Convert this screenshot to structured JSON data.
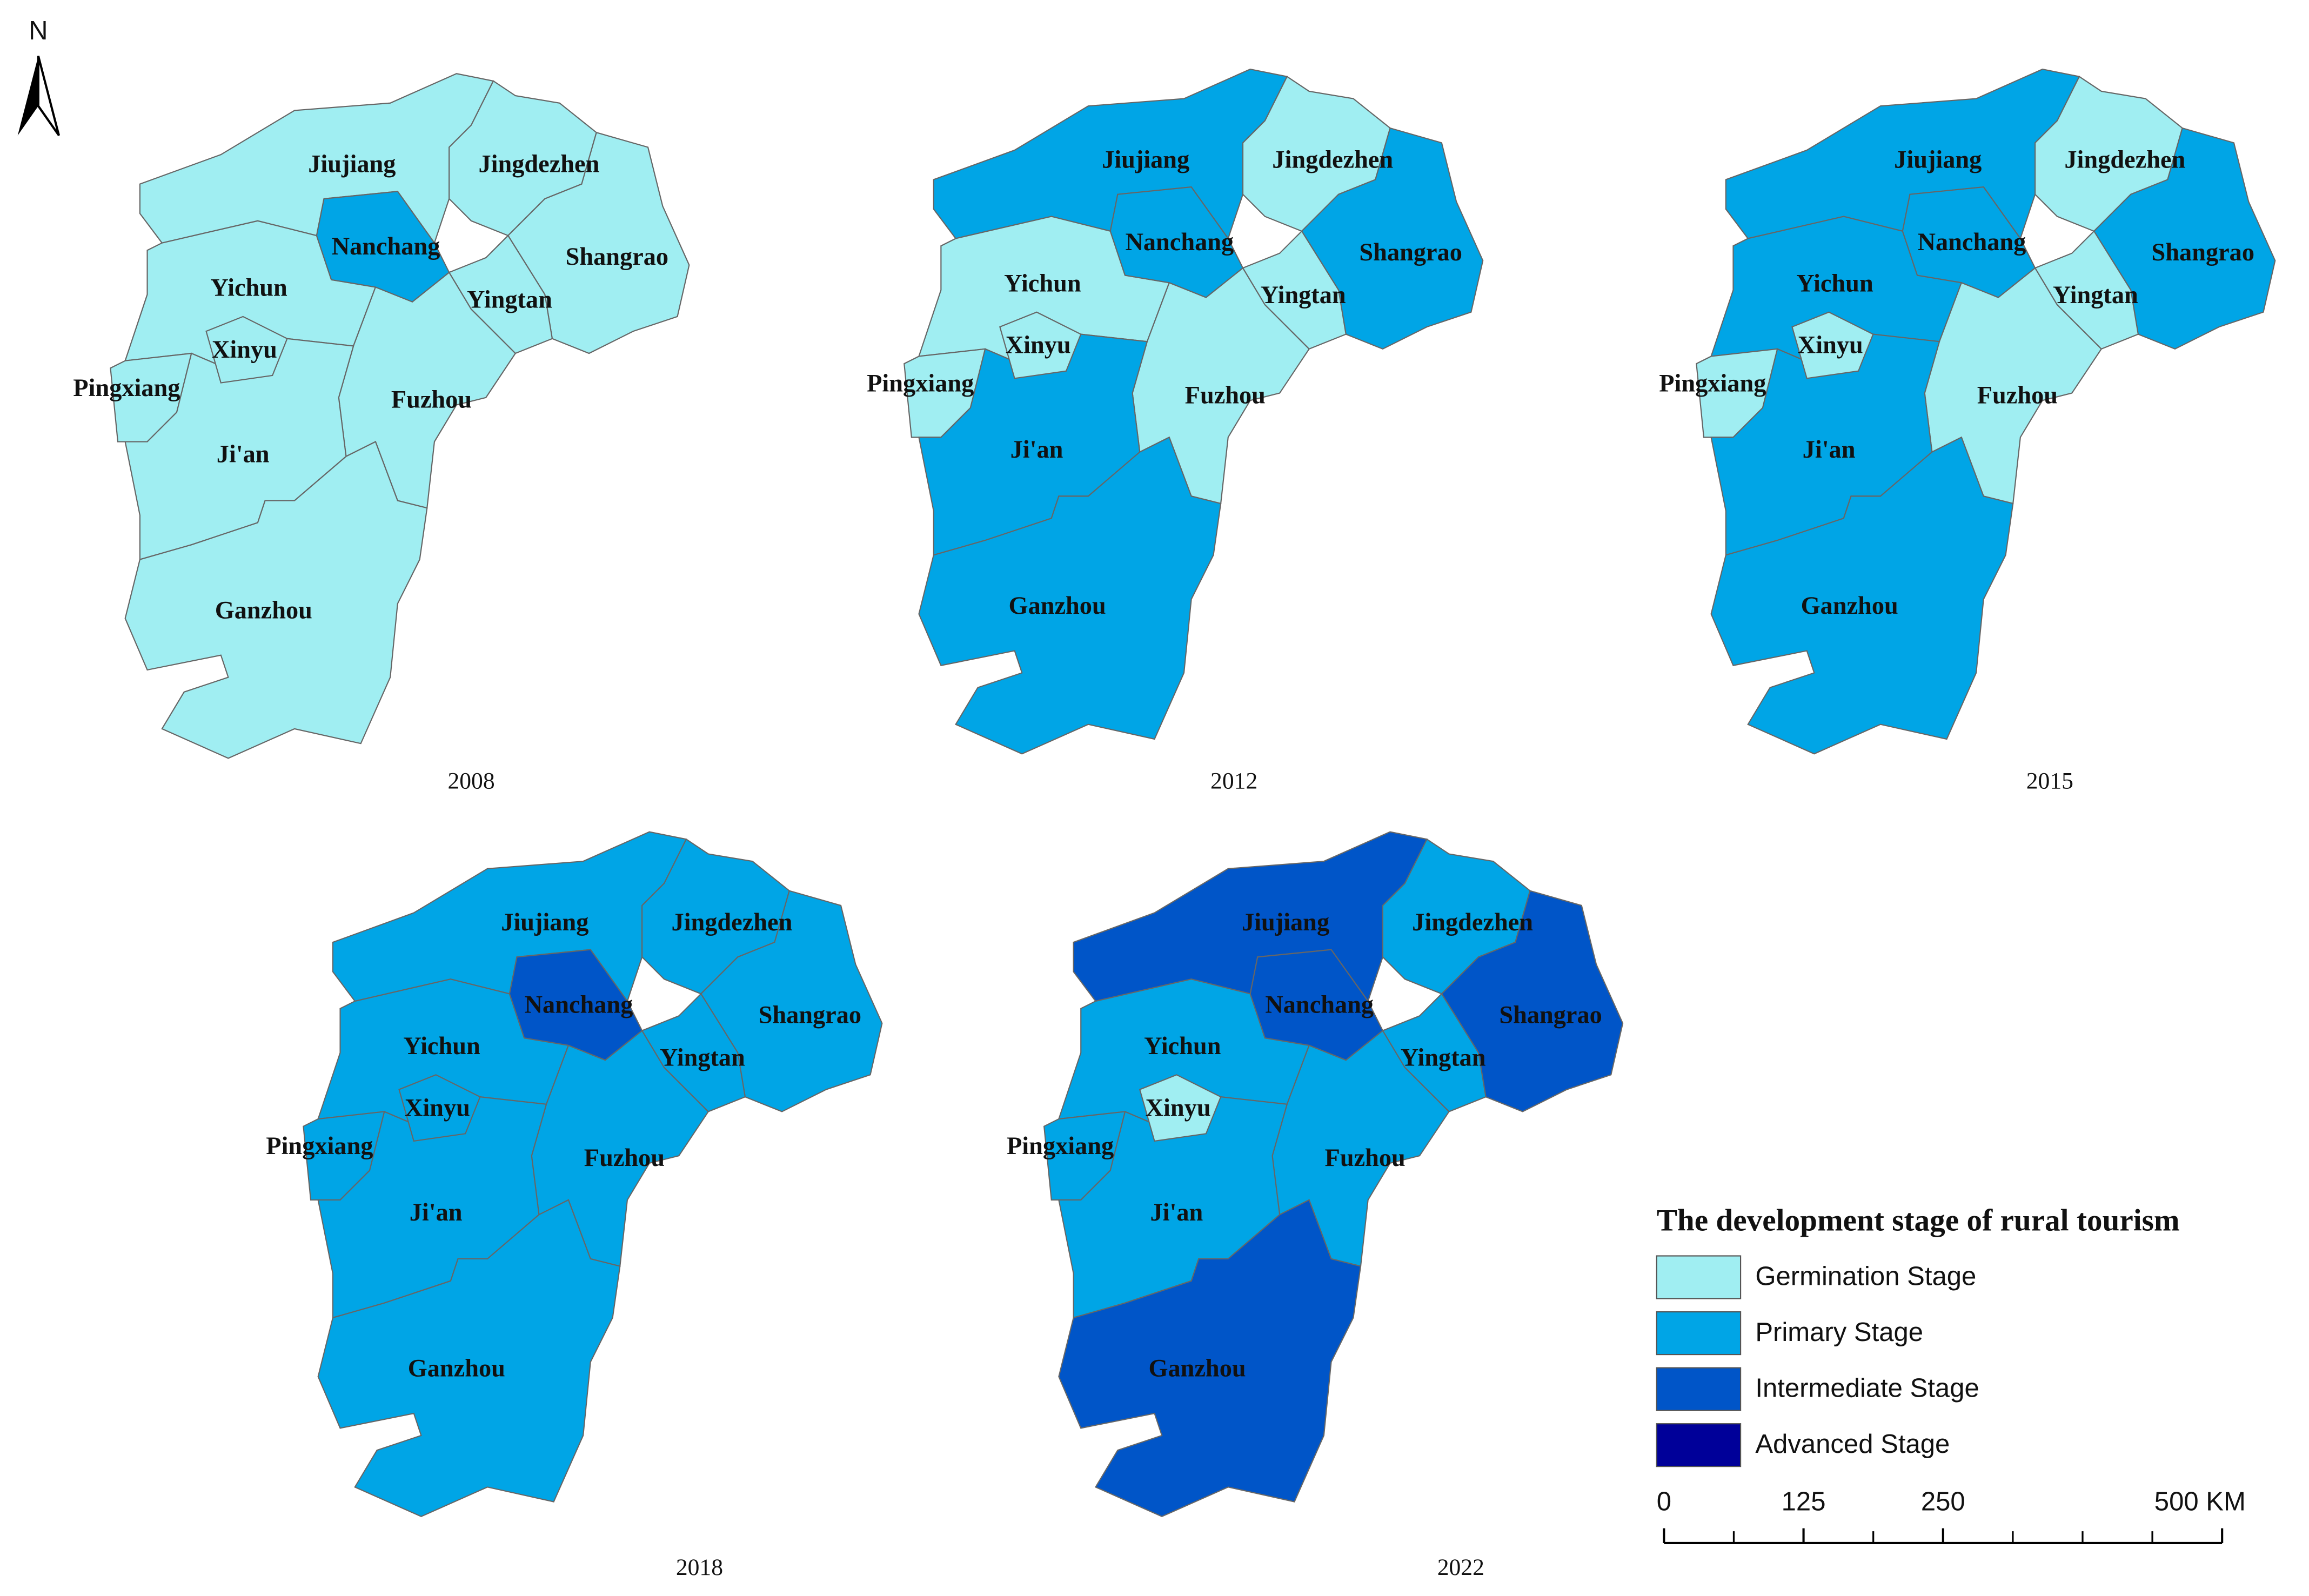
{
  "north": "N",
  "legend": {
    "title": "The development stage of rural tourism",
    "stages": [
      {
        "label": "Germination Stage",
        "color": "#a0eef2"
      },
      {
        "label": "Primary Stage",
        "color": "#00a5e6"
      },
      {
        "label": "Intermediate Stage",
        "color": "#0055c8"
      },
      {
        "label": "Advanced Stage",
        "color": "#000099"
      }
    ]
  },
  "scale_bar": {
    "ticks": [
      0,
      125,
      250,
      {
        "value": 500,
        "label": "500 KM"
      }
    ]
  },
  "maps": [
    {
      "year": "2008",
      "regions": [
        {
          "name": "Jiujiang",
          "stage": 0
        },
        {
          "name": "Jingdezhen",
          "stage": 0
        },
        {
          "name": "Shangrao",
          "stage": 0
        },
        {
          "name": "Yichun",
          "stage": 0
        },
        {
          "name": "Pingxiang",
          "stage": 0
        },
        {
          "name": "Fuzhou",
          "stage": 0
        },
        {
          "name": "Ji'an",
          "stage": 0
        },
        {
          "name": "Ganzhou",
          "stage": 0
        },
        {
          "name": "Nanchang",
          "stage": 1
        },
        {
          "name": "Yingtan",
          "stage": 0
        },
        {
          "name": "Xinyu",
          "stage": 0
        }
      ]
    },
    {
      "year": "2012",
      "regions": [
        {
          "name": "Jiujiang",
          "stage": 1
        },
        {
          "name": "Jingdezhen",
          "stage": 0
        },
        {
          "name": "Shangrao",
          "stage": 1
        },
        {
          "name": "Yichun",
          "stage": 0
        },
        {
          "name": "Pingxiang",
          "stage": 0
        },
        {
          "name": "Fuzhou",
          "stage": 0
        },
        {
          "name": "Ji'an",
          "stage": 1
        },
        {
          "name": "Ganzhou",
          "stage": 1
        },
        {
          "name": "Nanchang",
          "stage": 1
        },
        {
          "name": "Yingtan",
          "stage": 0
        },
        {
          "name": "Xinyu",
          "stage": 0
        }
      ]
    },
    {
      "year": "2015",
      "regions": [
        {
          "name": "Jiujiang",
          "stage": 1
        },
        {
          "name": "Jingdezhen",
          "stage": 0
        },
        {
          "name": "Shangrao",
          "stage": 1
        },
        {
          "name": "Yichun",
          "stage": 1
        },
        {
          "name": "Pingxiang",
          "stage": 0
        },
        {
          "name": "Fuzhou",
          "stage": 0
        },
        {
          "name": "Ji'an",
          "stage": 1
        },
        {
          "name": "Ganzhou",
          "stage": 1
        },
        {
          "name": "Nanchang",
          "stage": 1
        },
        {
          "name": "Yingtan",
          "stage": 0
        },
        {
          "name": "Xinyu",
          "stage": 0
        }
      ]
    },
    {
      "year": "2018",
      "regions": [
        {
          "name": "Jiujiang",
          "stage": 1
        },
        {
          "name": "Jingdezhen",
          "stage": 1
        },
        {
          "name": "Shangrao",
          "stage": 1
        },
        {
          "name": "Yichun",
          "stage": 1
        },
        {
          "name": "Pingxiang",
          "stage": 1
        },
        {
          "name": "Fuzhou",
          "stage": 1
        },
        {
          "name": "Ji'an",
          "stage": 1
        },
        {
          "name": "Ganzhou",
          "stage": 1
        },
        {
          "name": "Nanchang",
          "stage": 2
        },
        {
          "name": "Yingtan",
          "stage": 1
        },
        {
          "name": "Xinyu",
          "stage": 1
        }
      ]
    },
    {
      "year": "2022",
      "regions": [
        {
          "name": "Jiujiang",
          "stage": 2
        },
        {
          "name": "Jingdezhen",
          "stage": 1
        },
        {
          "name": "Shangrao",
          "stage": 2
        },
        {
          "name": "Yichun",
          "stage": 1
        },
        {
          "name": "Pingxiang",
          "stage": 1
        },
        {
          "name": "Fuzhou",
          "stage": 1
        },
        {
          "name": "Ji'an",
          "stage": 1
        },
        {
          "name": "Ganzhou",
          "stage": 2
        },
        {
          "name": "Nanchang",
          "stage": 2
        },
        {
          "name": "Yingtan",
          "stage": 1
        },
        {
          "name": "Xinyu",
          "stage": 0
        }
      ]
    }
  ]
}
